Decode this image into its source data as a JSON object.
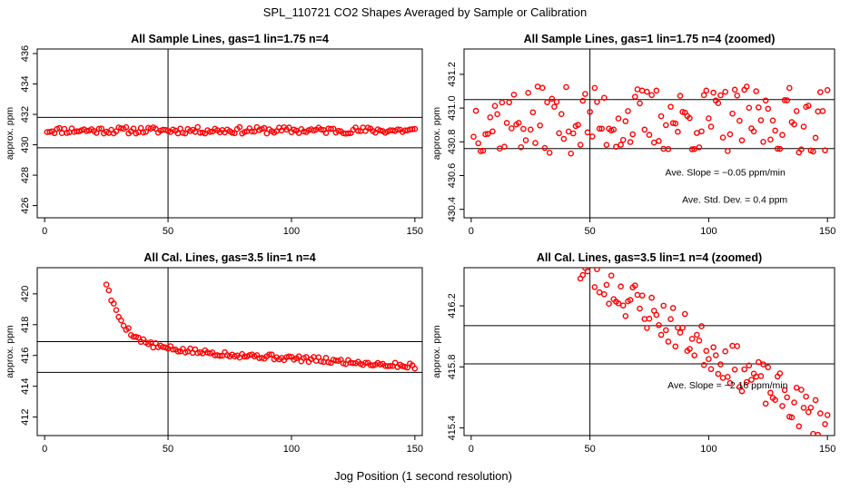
{
  "figure": {
    "title": "SPL_110721  CO2 Shapes Averaged by Sample or Calibration",
    "xlabel": "Jog Position (1 second resolution)"
  },
  "colors": {
    "points": "#ff0000",
    "axes": "#000000",
    "background": "#ffffff"
  },
  "chart_data": [
    {
      "type": "scatter",
      "title": "All Sample Lines, gas=1 lin=1.75 n=4",
      "xlabel": "Jog Position (1 second resolution)",
      "ylabel": "approx. ppm",
      "xlim": [
        -3,
        153
      ],
      "ylim": [
        425.2,
        436.3
      ],
      "xticks": [
        0,
        50,
        100,
        150
      ],
      "yticks": [
        426,
        428,
        430,
        432,
        434,
        436
      ],
      "vline": 50,
      "hlines": [
        429.8,
        431.8
      ],
      "series": [
        {
          "name": "sample",
          "x_start": 1,
          "x_end": 150,
          "pattern": "flat",
          "center": 430.95,
          "amplitude": 0.22,
          "seed": 11
        }
      ],
      "annotations": []
    },
    {
      "type": "scatter",
      "title": "All Sample Lines, gas=1 lin=1.75 n=4 (zoomed)",
      "xlabel": "Jog Position (1 second resolution)",
      "ylabel": "approx. ppm",
      "xlim": [
        -3,
        153
      ],
      "ylim": [
        430.35,
        431.35
      ],
      "xticks": [
        0,
        50,
        100,
        150
      ],
      "yticks": [
        430.4,
        430.6,
        430.8,
        431.0,
        431.2
      ],
      "ytick_labels": [
        "430.4",
        "430.6",
        "430.8",
        "431.0",
        "431.2"
      ],
      "vline": 50,
      "hlines": [
        430.76,
        431.05
      ],
      "series": [
        {
          "name": "sample",
          "x_start": 1,
          "x_end": 150,
          "pattern": "flat",
          "center": 430.93,
          "amplitude": 0.2,
          "seed": 37
        }
      ],
      "annotations": [
        {
          "text": "Ave. Slope =  −0.05  ppm/min",
          "x": 107,
          "y": 430.6
        },
        {
          "text": "Ave. Std. Dev. =  0.4  ppm",
          "x": 111,
          "y": 430.44
        }
      ]
    },
    {
      "type": "scatter",
      "title": "All Cal. Lines, gas=3.5 lin=1 n=4",
      "xlabel": "Jog Position (1 second resolution)",
      "ylabel": "approx. ppm",
      "xlim": [
        -3,
        153
      ],
      "ylim": [
        410.8,
        421.7
      ],
      "xticks": [
        0,
        50,
        100,
        150
      ],
      "yticks": [
        412,
        414,
        416,
        418,
        420
      ],
      "vline": 50,
      "hlines": [
        414.9,
        416.9
      ],
      "series": [
        {
          "name": "calibration",
          "x_start": 25,
          "x_end": 150,
          "pattern": "decay",
          "start_value": 420.7,
          "end_value": 415.3,
          "amplitude": 0.18,
          "seed": 5
        }
      ],
      "annotations": []
    },
    {
      "type": "scatter",
      "title": "All Cal. Lines, gas=3.5 lin=1 n=4 (zoomed)",
      "xlabel": "Jog Position (1 second resolution)",
      "ylabel": "approx. ppm",
      "xlim": [
        -3,
        153
      ],
      "ylim": [
        415.35,
        416.45
      ],
      "xticks": [
        0,
        50,
        100,
        150
      ],
      "yticks": [
        415.4,
        415.8,
        416.2
      ],
      "ytick_labels": [
        "415.4",
        "415.8",
        "416.2"
      ],
      "vline": 50,
      "hlines": [
        415.82,
        416.07
      ],
      "series": [
        {
          "name": "calibration",
          "x_start": 46,
          "x_end": 150,
          "pattern": "linear",
          "start_value": 416.45,
          "end_value": 415.42,
          "amplitude": 0.14,
          "seed": 23
        }
      ],
      "annotations": [
        {
          "text": "Ave. Slope =  −2.16  ppm/min",
          "x": 108,
          "y": 415.66
        }
      ]
    }
  ]
}
